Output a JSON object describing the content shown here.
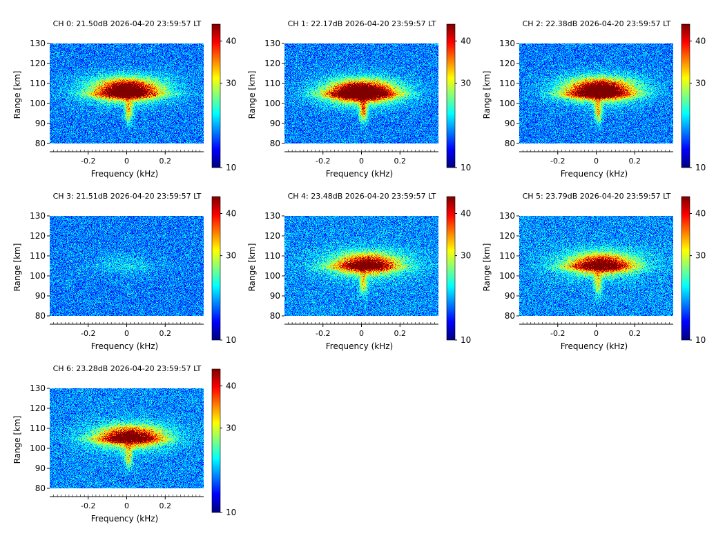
{
  "chart_data": {
    "type": "heatmap",
    "xlabel": "Frequency (kHz)",
    "ylabel": "Range [km]",
    "x_range": [
      -0.4,
      0.4
    ],
    "y_range": [
      80,
      130
    ],
    "xticks": [
      -0.2,
      0,
      0.2
    ],
    "xtick_labels": [
      "-0.2",
      "0",
      "0.2"
    ],
    "yticks": [
      80,
      90,
      100,
      110,
      120,
      130
    ],
    "ytick_labels": [
      "80",
      "90",
      "100",
      "110",
      "120",
      "130"
    ],
    "colorbar": {
      "range": [
        10,
        44
      ],
      "ticks": [
        10,
        30,
        40
      ],
      "tick_labels": [
        "10",
        "30",
        "40"
      ],
      "colormap": "jet"
    },
    "panels": [
      {
        "title": "CH 0: 21.50dB 2026-04-20 23:59:57 LT",
        "echo_strength": 1.0,
        "echo_center_khz": 0.0,
        "echo_center_km": 107,
        "noise": 0.05
      },
      {
        "title": "CH 1: 22.17dB 2026-04-20 23:59:57 LT",
        "echo_strength": 1.15,
        "echo_center_khz": 0.0,
        "echo_center_km": 106,
        "noise": 0.05
      },
      {
        "title": "CH 2: 22.38dB 2026-04-20 23:59:57 LT",
        "echo_strength": 1.05,
        "echo_center_khz": 0.02,
        "echo_center_km": 107,
        "noise": 0.05
      },
      {
        "title": "CH 3: 21.51dB 2026-04-20 23:59:57 LT",
        "echo_strength": 0.08,
        "echo_center_khz": 0.0,
        "echo_center_km": 106,
        "noise": 0.05
      },
      {
        "title": "CH 4: 23.48dB 2026-04-20 23:59:57 LT",
        "echo_strength": 0.8,
        "echo_center_khz": 0.03,
        "echo_center_km": 106,
        "noise": 0.09
      },
      {
        "title": "CH 5: 23.79dB 2026-04-20 23:59:57 LT",
        "echo_strength": 0.8,
        "echo_center_khz": 0.03,
        "echo_center_km": 106,
        "noise": 0.09
      },
      {
        "title": "CH 6: 23.28dB 2026-04-20 23:59:57 LT",
        "echo_strength": 0.85,
        "echo_center_khz": 0.02,
        "echo_center_km": 106,
        "noise": 0.08
      }
    ]
  }
}
